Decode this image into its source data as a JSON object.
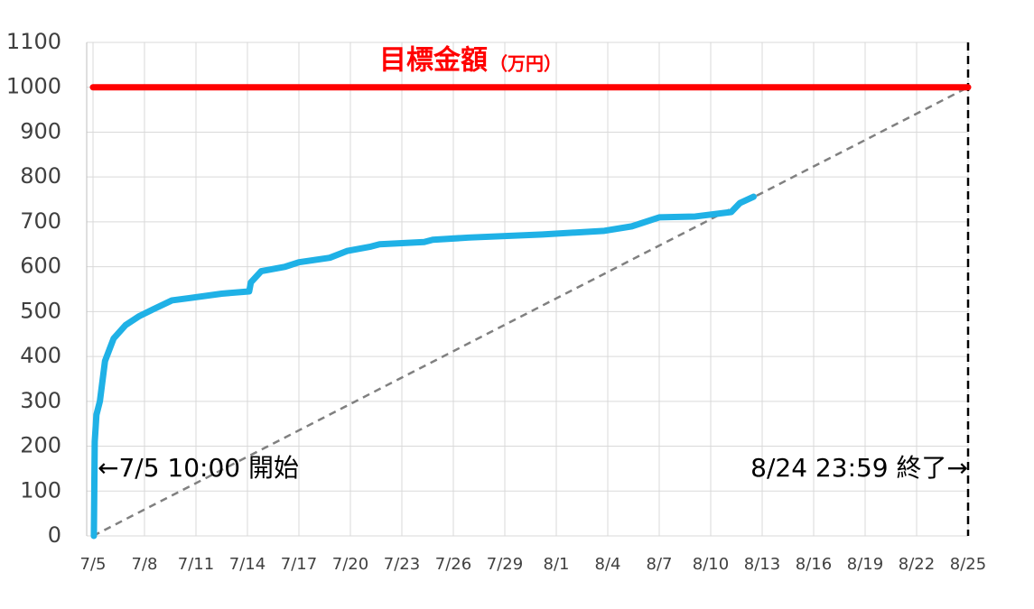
{
  "chart_data": {
    "type": "line",
    "title": "目標金額",
    "title_unit": "（万円）",
    "x": [
      0.05,
      0.1,
      0.2,
      0.4,
      0.7,
      1.2,
      1.9,
      2.7,
      3.5,
      4.6,
      5.6,
      7.5,
      9.1,
      9.2,
      9.8,
      11.2,
      12,
      13.8,
      14.8,
      16.2,
      16.7,
      19.3,
      19.8,
      21.9,
      26.2,
      29.8,
      31.4,
      33,
      35.1,
      37.2,
      37.7,
      38.5
    ],
    "series": [
      {
        "color": "#1fb1e6",
        "values": [
          0,
          210,
          270,
          300,
          390,
          440,
          470,
          490,
          505,
          525,
          530,
          540,
          545,
          565,
          590,
          600,
          610,
          620,
          635,
          645,
          650,
          655,
          660,
          665,
          672,
          680,
          690,
          710,
          712,
          722,
          742,
          756
        ]
      }
    ],
    "target_line": {
      "value": 1000,
      "color": "#ff0000"
    },
    "pace_line": {
      "x": [
        0,
        51
      ],
      "values": [
        0,
        1000
      ],
      "color": "#808080"
    },
    "end_line": {
      "x": 51,
      "color": "#000000"
    },
    "annotations": [
      "←7/5 10:00 開始",
      "8/24 23:59 終了→"
    ],
    "xlim": [
      0,
      51
    ],
    "xticks": [
      {
        "value": 0,
        "label": "7/5"
      },
      {
        "value": 3,
        "label": "7/8"
      },
      {
        "value": 6,
        "label": "7/11"
      },
      {
        "value": 9,
        "label": "7/14"
      },
      {
        "value": 12,
        "label": "7/17"
      },
      {
        "value": 15,
        "label": "7/20"
      },
      {
        "value": 18,
        "label": "7/23"
      },
      {
        "value": 21,
        "label": "7/26"
      },
      {
        "value": 24,
        "label": "7/29"
      },
      {
        "value": 27,
        "label": "8/1"
      },
      {
        "value": 30,
        "label": "8/4"
      },
      {
        "value": 33,
        "label": "8/7"
      },
      {
        "value": 36,
        "label": "8/10"
      },
      {
        "value": 39,
        "label": "8/13"
      },
      {
        "value": 42,
        "label": "8/16"
      },
      {
        "value": 45,
        "label": "8/19"
      },
      {
        "value": 48,
        "label": "8/22"
      },
      {
        "value": 51,
        "label": "8/25"
      }
    ],
    "ylim": [
      0,
      1100
    ],
    "yticks": [
      0,
      100,
      200,
      300,
      400,
      500,
      600,
      700,
      800,
      900,
      1000,
      1100
    ],
    "grid": true
  }
}
